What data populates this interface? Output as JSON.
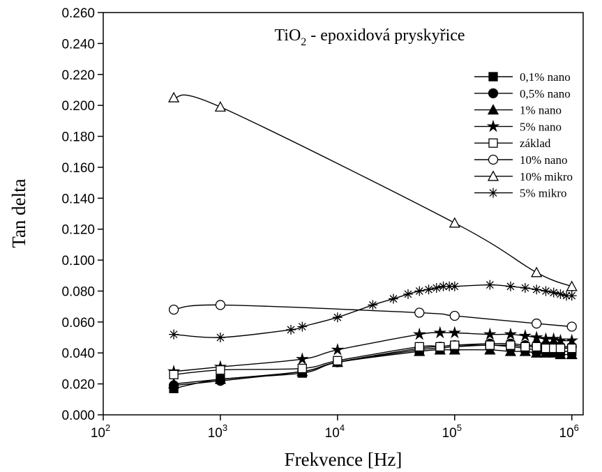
{
  "chart_data": {
    "type": "line",
    "title": "TiO",
    "title_sub": "2",
    "title_rest": "- epoxidová pryskyřice",
    "xlabel": "Frekvence [Hz]",
    "ylabel": "Tan delta",
    "xscale": "log",
    "legend": "upper right",
    "xlim": [
      100,
      1250000
    ],
    "ylim": [
      0,
      0.26
    ],
    "xticks": [
      {
        "value": 100,
        "label": "10",
        "sup": "2"
      },
      {
        "value": 1000,
        "label": "10",
        "sup": "3"
      },
      {
        "value": 10000,
        "label": "10",
        "sup": "4"
      },
      {
        "value": 100000,
        "label": "10",
        "sup": "5"
      },
      {
        "value": 1000000,
        "label": "10",
        "sup": "6"
      }
    ],
    "yticks": [
      {
        "value": 0,
        "label": "0.000"
      },
      {
        "value": 0.02,
        "label": "0.020"
      },
      {
        "value": 0.04,
        "label": "0.040"
      },
      {
        "value": 0.06,
        "label": "0.060"
      },
      {
        "value": 0.08,
        "label": "0.080"
      },
      {
        "value": 0.1,
        "label": "0.100"
      },
      {
        "value": 0.12,
        "label": "0.120"
      },
      {
        "value": 0.14,
        "label": "0.140"
      },
      {
        "value": 0.16,
        "label": "0.160"
      },
      {
        "value": 0.18,
        "label": "0.180"
      },
      {
        "value": 0.2,
        "label": "0.200"
      },
      {
        "value": 0.22,
        "label": "0.220"
      },
      {
        "value": 0.24,
        "label": "0.240"
      },
      {
        "value": 0.26,
        "label": "0.260"
      }
    ],
    "series": [
      {
        "name": "0,1% nano",
        "marker": "square-filled",
        "x": [
          400,
          1000,
          5000,
          10000,
          50000,
          75000,
          100000,
          200000,
          300000,
          400000,
          500000,
          600000,
          700000,
          800000,
          1000000
        ],
        "values": [
          0.017,
          0.023,
          0.027,
          0.034,
          0.042,
          0.043,
          0.044,
          0.045,
          0.044,
          0.043,
          0.042,
          0.042,
          0.041,
          0.041,
          0.041
        ]
      },
      {
        "name": "0,5% nano",
        "marker": "circle-filled",
        "x": [
          400,
          1000,
          5000,
          10000,
          50000,
          75000,
          100000,
          200000,
          300000,
          400000,
          500000,
          600000,
          700000,
          800000,
          1000000
        ],
        "values": [
          0.019,
          0.022,
          0.028,
          0.034,
          0.043,
          0.044,
          0.045,
          0.046,
          0.046,
          0.045,
          0.045,
          0.045,
          0.045,
          0.044,
          0.044
        ]
      },
      {
        "name": "1% nano",
        "marker": "triangle-filled",
        "x": [
          400,
          1000,
          5000,
          10000,
          50000,
          75000,
          100000,
          200000,
          300000,
          400000,
          500000,
          600000,
          700000,
          800000,
          1000000
        ],
        "values": [
          0.02,
          0.023,
          0.028,
          0.034,
          0.041,
          0.042,
          0.042,
          0.042,
          0.041,
          0.041,
          0.04,
          0.04,
          0.04,
          0.039,
          0.039
        ]
      },
      {
        "name": "5% nano",
        "marker": "star-filled",
        "x": [
          400,
          1000,
          5000,
          10000,
          50000,
          75000,
          100000,
          200000,
          300000,
          400000,
          500000,
          600000,
          700000,
          800000,
          1000000
        ],
        "values": [
          0.028,
          0.031,
          0.036,
          0.042,
          0.052,
          0.053,
          0.053,
          0.052,
          0.052,
          0.051,
          0.05,
          0.049,
          0.049,
          0.048,
          0.048
        ]
      },
      {
        "name": "základ",
        "marker": "square-open",
        "x": [
          400,
          1000,
          5000,
          10000,
          50000,
          75000,
          100000,
          200000,
          300000,
          400000,
          500000,
          600000,
          700000,
          800000,
          1000000
        ],
        "values": [
          0.026,
          0.029,
          0.03,
          0.035,
          0.044,
          0.044,
          0.045,
          0.045,
          0.045,
          0.044,
          0.044,
          0.043,
          0.043,
          0.043,
          0.043
        ]
      },
      {
        "name": "10% nano",
        "marker": "circle-open",
        "x": [
          400,
          1000,
          50000,
          100000,
          500000,
          1000000
        ],
        "values": [
          0.068,
          0.071,
          0.066,
          0.064,
          0.059,
          0.057
        ]
      },
      {
        "name": "10% mikro",
        "marker": "triangle-open",
        "x": [
          400,
          1000,
          100000,
          500000,
          1000000
        ],
        "values": [
          0.205,
          0.199,
          0.124,
          0.092,
          0.083
        ]
      },
      {
        "name": "5% mikro",
        "marker": "asterisk",
        "x": [
          400,
          1000,
          4000,
          5000,
          10000,
          20000,
          30000,
          40000,
          50000,
          60000,
          70000,
          80000,
          90000,
          100000,
          200000,
          300000,
          400000,
          500000,
          600000,
          700000,
          800000,
          900000,
          1000000
        ],
        "values": [
          0.052,
          0.05,
          0.055,
          0.057,
          0.063,
          0.071,
          0.075,
          0.078,
          0.08,
          0.081,
          0.082,
          0.083,
          0.083,
          0.083,
          0.084,
          0.083,
          0.082,
          0.081,
          0.08,
          0.079,
          0.078,
          0.077,
          0.077
        ]
      }
    ]
  }
}
